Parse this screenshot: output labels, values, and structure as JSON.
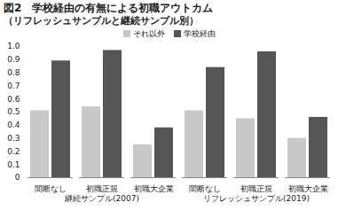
{
  "chart_data": {
    "type": "bar",
    "title": "図2　学校経由の有無による初職アウトカム",
    "subtitle": "（リフレッシュサンプルと継続サンプル別）",
    "groups": [
      {
        "name": "継続サンプル(2007)",
        "categories": [
          "間断なし",
          "初職正規",
          "初職大企業"
        ]
      },
      {
        "name": "リフレッシュサンプル(2019)",
        "categories": [
          "間断なし",
          "初職正規",
          "初職大企業"
        ]
      }
    ],
    "series": [
      {
        "name": "それ以外",
        "color": "#c8c8c8",
        "values": [
          0.51,
          0.54,
          0.25,
          0.51,
          0.45,
          0.3
        ]
      },
      {
        "name": "学校経由",
        "color": "#555555",
        "values": [
          0.89,
          0.97,
          0.38,
          0.84,
          0.96,
          0.46
        ]
      }
    ],
    "ylim": [
      0,
      1
    ],
    "yticks": [
      0,
      0.1,
      0.2,
      0.3,
      0.4,
      0.5,
      0.6,
      0.7,
      0.8,
      0.9,
      {
        "value": 1,
        "label": "1.0"
      }
    ],
    "grid": false,
    "legend": "top"
  }
}
